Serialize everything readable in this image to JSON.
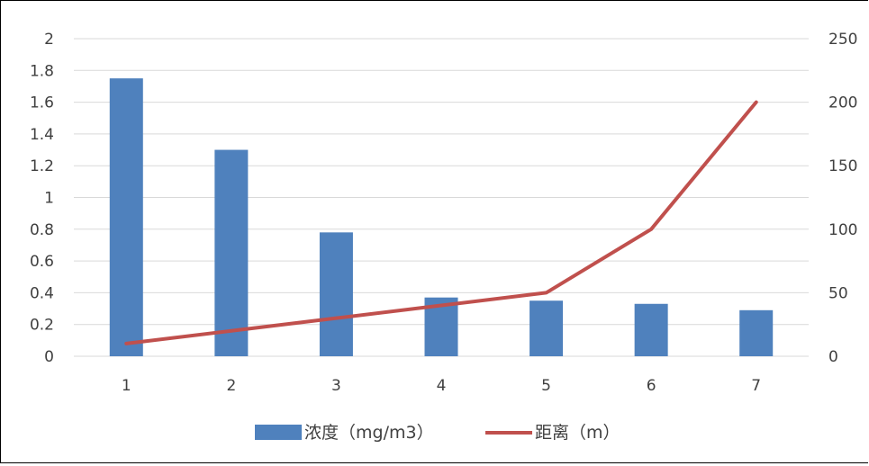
{
  "chart_data": {
    "type": "bar",
    "categories": [
      "1",
      "2",
      "3",
      "4",
      "5",
      "6",
      "7"
    ],
    "series": [
      {
        "name": "浓度（mg/m3）",
        "type": "bar",
        "axis": "left",
        "color": "#4F81BD",
        "values": [
          1.75,
          1.3,
          0.78,
          0.37,
          0.35,
          0.33,
          0.29
        ]
      },
      {
        "name": "距离（m）",
        "type": "line",
        "axis": "right",
        "color": "#C0504D",
        "values": [
          10,
          20,
          30,
          40,
          50,
          100,
          200
        ]
      }
    ],
    "y_left": {
      "ylim": [
        0,
        2
      ],
      "ticks": [
        "0",
        "0.2",
        "0.4",
        "0.6",
        "0.8",
        "1",
        "1.2",
        "1.4",
        "1.6",
        "1.8",
        "2"
      ]
    },
    "y_right": {
      "ylim": [
        0,
        250
      ],
      "ticks": [
        "0",
        "50",
        "100",
        "150",
        "200",
        "250"
      ]
    },
    "grid": true,
    "legend": "bottom"
  }
}
